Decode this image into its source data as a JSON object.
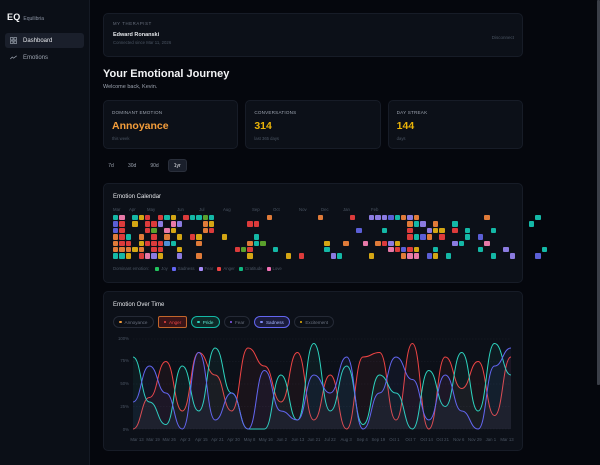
{
  "sidebar": {
    "brand_logo": "EQ",
    "brand_name": "Equilibria",
    "items": [
      {
        "label": "Dashboard",
        "icon": "grid-icon",
        "active": true
      },
      {
        "label": "Emotions",
        "icon": "trend-icon",
        "active": false
      }
    ]
  },
  "therapist": {
    "eyebrow": "MY THERAPIST",
    "name": "Edward Ronanski",
    "since": "Connected since Mar 11, 2026",
    "disconnect_label": "Disconnect"
  },
  "header": {
    "title": "Your Emotional Journey",
    "welcome": "Welcome back, Kevin."
  },
  "stats": [
    {
      "label": "DOMINANT EMOTION",
      "value": "Annoyance",
      "sub": "this week",
      "color": "#f59e3b"
    },
    {
      "label": "CONVERSATIONS",
      "value": "314",
      "sub": "last 365 days",
      "color": "#eab308"
    },
    {
      "label": "DAY STREAK",
      "value": "144",
      "sub": "days",
      "color": "#eab308"
    }
  ],
  "range": {
    "options": [
      "7d",
      "30d",
      "90d",
      "1yr"
    ],
    "selected": "1yr"
  },
  "calendar": {
    "title": "Emotion Calendar",
    "months": [
      "Mar",
      "Apr",
      "May",
      "Jun",
      "Jul",
      "Aug",
      "Sep",
      "Oct",
      "Nov",
      "Dec",
      "Jan",
      "Feb"
    ],
    "legend_title": "Dominant emotion:",
    "legend": [
      {
        "label": "Joy",
        "color": "#22c55e"
      },
      {
        "label": "Sadness",
        "color": "#6366f1"
      },
      {
        "label": "Fear",
        "color": "#a78bfa"
      },
      {
        "label": "Anger",
        "color": "#ef4444"
      },
      {
        "label": "Gratitude",
        "color": "#10b981"
      },
      {
        "label": "Love",
        "color": "#f472b6"
      }
    ]
  },
  "overtime": {
    "title": "Emotion Over Time",
    "chips": [
      {
        "label": "Annoyance",
        "color": "#f59e3b",
        "active": false
      },
      {
        "label": "Anger",
        "color": "#ef4444",
        "active": true
      },
      {
        "label": "Pride",
        "color": "#2dd4bf",
        "active": true
      },
      {
        "label": "Fear",
        "color": "#8b5cf6",
        "active": false
      },
      {
        "label": "Sadness",
        "color": "#6366f1",
        "active": true
      },
      {
        "label": "Excitement",
        "color": "#eab308",
        "active": false
      }
    ]
  },
  "chart_data": {
    "type": "line",
    "title": "Emotion Over Time",
    "ylabel": "",
    "xlabel": "",
    "ylim": [
      0,
      100
    ],
    "yticks": [
      "100%",
      "75%",
      "50%",
      "25%",
      "0%"
    ],
    "x": [
      "Mar 13",
      "Mar 19",
      "Mar 26",
      "Apr 3",
      "Apr 15",
      "Apr 21",
      "Apr 30",
      "May 8",
      "May 16",
      "Jun 2",
      "Jun 13",
      "Jun 21",
      "Jul 22",
      "Aug 3",
      "Sep 4",
      "Sep 19",
      "Oct 1",
      "Oct 7",
      "Oct 14",
      "Oct 21",
      "Nov 6",
      "Nov 29",
      "Jan 1",
      "Mar 13"
    ],
    "series": [
      {
        "name": "Anger",
        "color": "#ef4444",
        "values": [
          0,
          35,
          75,
          20,
          85,
          60,
          20,
          90,
          70,
          30,
          85,
          10,
          60,
          0,
          80,
          85,
          10,
          95,
          0,
          80,
          45,
          75,
          15,
          80
        ]
      },
      {
        "name": "Pride",
        "color": "#2dd4bf",
        "values": [
          80,
          30,
          5,
          70,
          20,
          90,
          40,
          0,
          0,
          60,
          10,
          95,
          20,
          70,
          5,
          60,
          40,
          0,
          65,
          25,
          85,
          20,
          95,
          60
        ]
      },
      {
        "name": "Sadness",
        "color": "#6366f1",
        "values": [
          30,
          70,
          40,
          0,
          85,
          10,
          40,
          0,
          65,
          20,
          10,
          60,
          40,
          80,
          0,
          40,
          80,
          55,
          10,
          60,
          20,
          0,
          70,
          90
        ]
      }
    ],
    "grid": true,
    "legend_position": "top"
  }
}
